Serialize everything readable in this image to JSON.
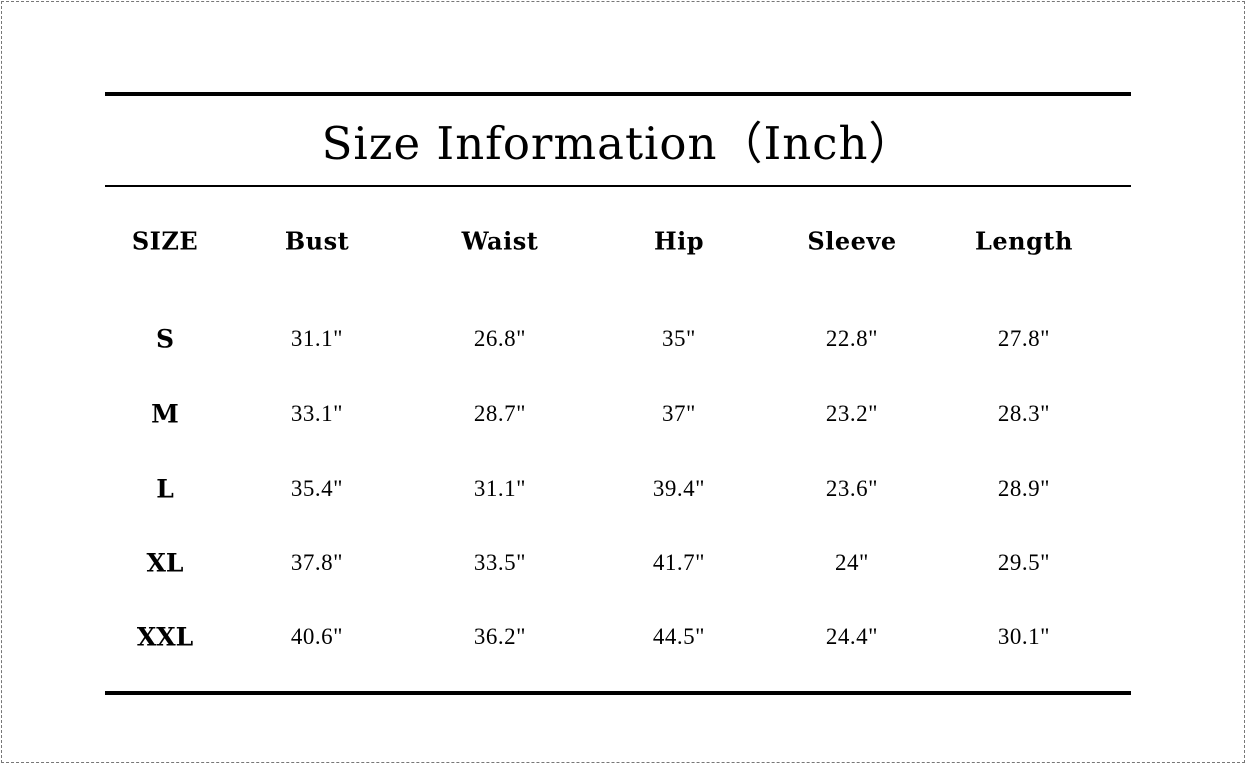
{
  "title": "Size Information（Inch）",
  "headers": [
    "SIZE",
    "Bust",
    "Waist",
    "Hip",
    "Sleeve",
    "Length"
  ],
  "rows": [
    [
      "S",
      "31.1\"",
      "26.8\"",
      "35\"",
      "22.8\"",
      "27.8\""
    ],
    [
      "M",
      "33.1\"",
      "28.7\"",
      "37\"",
      "23.2\"",
      "28.3\""
    ],
    [
      "L",
      "35.4\"",
      "31.1\"",
      "39.4\"",
      "23.6\"",
      "28.9\""
    ],
    [
      "XL",
      "37.8\"",
      "33.5\"",
      "41.7\"",
      "24\"",
      "29.5\""
    ],
    [
      "XXL",
      "40.6\"",
      "36.2\"",
      "44.5\"",
      "24.4\"",
      "30.1\""
    ]
  ]
}
